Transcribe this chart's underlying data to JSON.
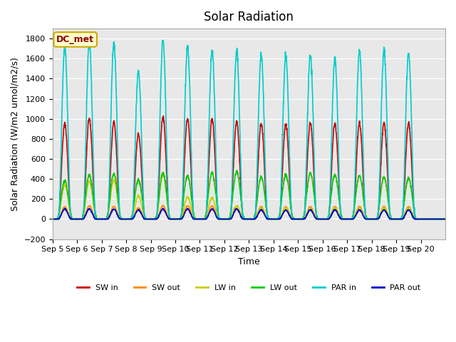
{
  "title": "Solar Radiation",
  "xlabel": "Time",
  "ylabel": "Solar Radiation (W/m2 umol/m2/s)",
  "ylim": [
    -200,
    1900
  ],
  "yticks": [
    -200,
    0,
    200,
    400,
    600,
    800,
    1000,
    1200,
    1400,
    1600,
    1800
  ],
  "background_color": "#e8e8e8",
  "legend_label": "DC_met",
  "series": {
    "SW_in": {
      "color": "#cc0000",
      "lw": 1.5
    },
    "SW_out": {
      "color": "#ff8800",
      "lw": 1.5
    },
    "LW_in": {
      "color": "#cccc00",
      "lw": 1.5
    },
    "LW_out": {
      "color": "#00cc00",
      "lw": 1.5
    },
    "PAR_in": {
      "color": "#00cccc",
      "lw": 1.5
    },
    "PAR_out": {
      "color": "#0000cc",
      "lw": 1.5
    }
  },
  "legend_entries": [
    {
      "label": "SW in",
      "color": "#cc0000"
    },
    {
      "label": "SW out",
      "color": "#ff8800"
    },
    {
      "label": "LW in",
      "color": "#cccc00"
    },
    {
      "label": "LW out",
      "color": "#00cc00"
    },
    {
      "label": "PAR in",
      "color": "#00cccc"
    },
    {
      "label": "PAR out",
      "color": "#0000cc"
    }
  ],
  "num_days": 16,
  "day_labels": [
    "Sep 5",
    "Sep 6",
    "Sep 7",
    "Sep 8",
    "Sep 9",
    "Sep 10",
    "Sep 11",
    "Sep 12",
    "Sep 13",
    "Sep 14",
    "Sep 15",
    "Sep 16",
    "Sep 17",
    "Sep 18",
    "Sep 19",
    "Sep 20"
  ],
  "SW_in_peaks": [
    950,
    1000,
    970,
    850,
    1020,
    1000,
    1000,
    970,
    950,
    950,
    960,
    950,
    960,
    960,
    960,
    0
  ],
  "LW_in_peaks": [
    340,
    380,
    390,
    230,
    440,
    220,
    210,
    130,
    110,
    110,
    100,
    110,
    110,
    110,
    110,
    0
  ],
  "LW_out_peaks": [
    380,
    440,
    450,
    390,
    460,
    430,
    460,
    470,
    420,
    440,
    460,
    440,
    430,
    420,
    410,
    0
  ],
  "PAR_in_peaks": [
    1720,
    1770,
    1760,
    1480,
    1780,
    1720,
    1690,
    1680,
    1640,
    1630,
    1650,
    1600,
    1680,
    1680,
    1670,
    0
  ],
  "PAR_out_peaks": [
    100,
    100,
    100,
    90,
    100,
    100,
    100,
    100,
    90,
    90,
    90,
    90,
    90,
    90,
    90,
    0
  ]
}
